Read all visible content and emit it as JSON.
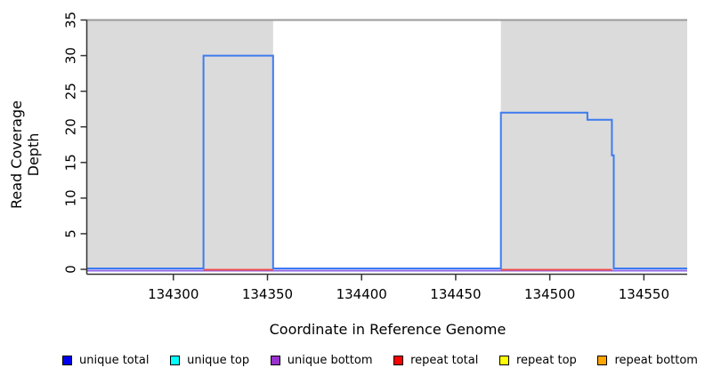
{
  "chart_data": {
    "type": "line",
    "title": "",
    "xlabel": "Coordinate in Reference Genome",
    "ylabel": "Read Coverage Depth",
    "xlim": [
      134254,
      134573
    ],
    "ylim": [
      0,
      35
    ],
    "x_ticks": [
      134300,
      134350,
      134400,
      134450,
      134500,
      134550
    ],
    "y_ticks": [
      0,
      5,
      10,
      15,
      20,
      25,
      30,
      35
    ],
    "grid": "off",
    "legend_position": "bottom",
    "repeat_regions": [
      {
        "start": 134254,
        "end": 134353
      },
      {
        "start": 134474,
        "end": 134573
      }
    ],
    "region_fill": "#DBDBDB",
    "ceiling_line": {
      "y": 35,
      "color": "#9A9A9A"
    },
    "series": [
      {
        "name": "unique total coverage (step outline)",
        "color": "#3D7BF0",
        "points": [
          [
            134254,
            0
          ],
          [
            134316,
            0
          ],
          [
            134316,
            30
          ],
          [
            134353,
            30
          ],
          [
            134353,
            0
          ],
          [
            134474,
            0
          ],
          [
            134474,
            22
          ],
          [
            134520,
            22
          ],
          [
            134520,
            21
          ],
          [
            134533,
            21
          ],
          [
            134533,
            16
          ],
          [
            134534,
            16
          ],
          [
            134534,
            0
          ],
          [
            134573,
            0
          ]
        ]
      },
      {
        "name": "unique bottom baseline",
        "color": "#8B67E8",
        "y": 0,
        "segments": [
          [
            134254,
            134573
          ]
        ]
      },
      {
        "name": "repeat total baseline",
        "color": "#F04B4B",
        "y": 0,
        "segments": [
          [
            134316,
            134353
          ],
          [
            134474,
            134533
          ]
        ]
      }
    ]
  },
  "legend": {
    "items": [
      {
        "label": "unique total",
        "color": "#0000EE"
      },
      {
        "label": "unique top",
        "color": "#00FFFF"
      },
      {
        "label": "unique bottom",
        "color": "#9932CC"
      },
      {
        "label": "repeat total",
        "color": "#FF0000"
      },
      {
        "label": "repeat top",
        "color": "#FFFF00"
      },
      {
        "label": "repeat bottom",
        "color": "#FFA500"
      }
    ]
  }
}
